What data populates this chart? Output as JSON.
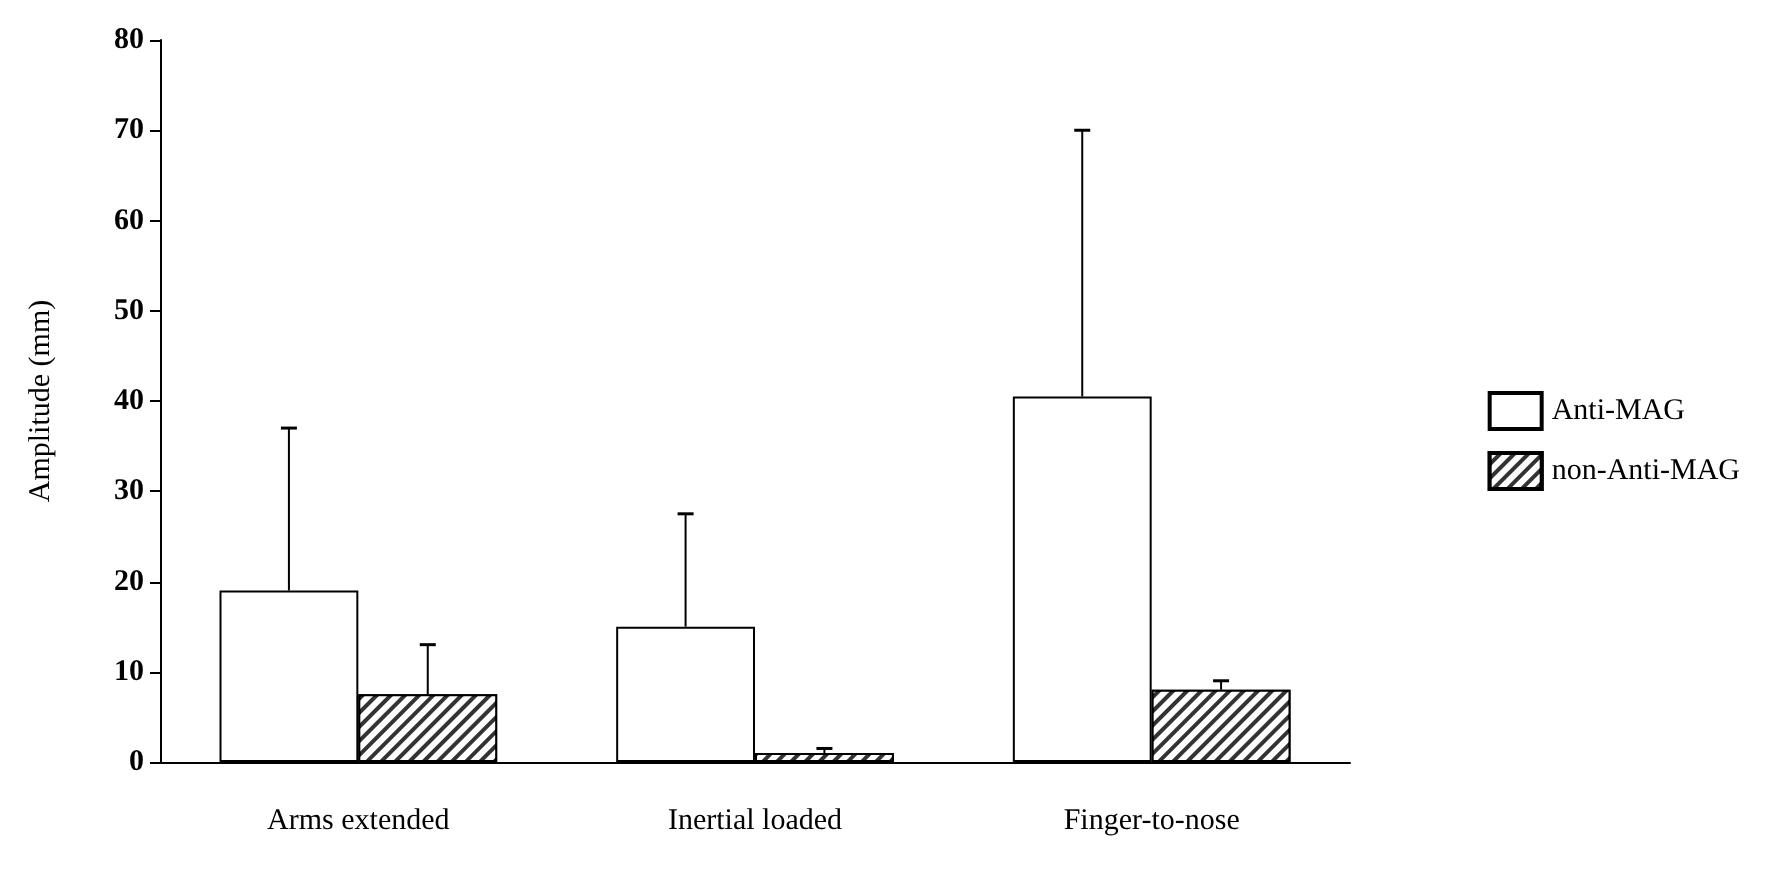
{
  "chart_data": {
    "type": "bar",
    "ylabel": "Amplitude (mm)",
    "categories": [
      "Arms extended",
      "Inertial loaded",
      "Finger-to-nose"
    ],
    "series": [
      {
        "name": "Anti-MAG",
        "color": "#ffffff",
        "values": [
          19,
          15,
          40.5
        ],
        "errors": [
          [
            19,
            37
          ],
          [
            15,
            27.5
          ],
          [
            40.5,
            70
          ]
        ]
      },
      {
        "name": "non-Anti-MAG",
        "color": "#333333",
        "values": [
          7.5,
          1,
          8
        ],
        "errors": [
          [
            7.5,
            13
          ],
          [
            1,
            1.5
          ],
          [
            8,
            9
          ]
        ]
      }
    ],
    "ylim": [
      0,
      80
    ],
    "yticks": [
      0,
      10,
      20,
      30,
      40,
      50,
      60,
      70,
      80
    ],
    "grid": false,
    "legend": "right"
  }
}
